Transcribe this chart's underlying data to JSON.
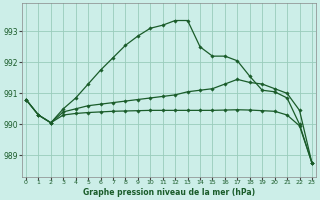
{
  "title": "Graphe pression niveau de la mer (hPa)",
  "background_color": "#cceee8",
  "grid_color": "#99ccbb",
  "line_color": "#1a5c2a",
  "x_ticks": [
    0,
    1,
    2,
    3,
    4,
    5,
    6,
    7,
    8,
    9,
    10,
    11,
    12,
    13,
    14,
    15,
    16,
    17,
    18,
    19,
    20,
    21,
    22,
    23
  ],
  "y_ticks": [
    989,
    990,
    991,
    992,
    993
  ],
  "ylim": [
    988.3,
    993.9
  ],
  "xlim": [
    -0.3,
    23.3
  ],
  "lines": [
    [
      990.8,
      990.3,
      990.05,
      990.5,
      990.85,
      991.3,
      991.75,
      992.15,
      992.55,
      992.85,
      993.1,
      993.2,
      993.35,
      993.35,
      992.5,
      992.2,
      992.2,
      992.05,
      991.55,
      991.1,
      991.05,
      990.85,
      990.0,
      988.75
    ],
    [
      990.8,
      990.3,
      990.05,
      990.4,
      990.5,
      990.6,
      990.65,
      990.7,
      990.75,
      990.8,
      990.85,
      990.9,
      990.95,
      991.05,
      991.1,
      991.15,
      991.3,
      991.45,
      991.35,
      991.3,
      991.15,
      991.0,
      990.45,
      988.75
    ],
    [
      990.8,
      990.3,
      990.05,
      990.3,
      990.35,
      990.38,
      990.4,
      990.42,
      990.43,
      990.44,
      990.45,
      990.45,
      990.45,
      990.45,
      990.45,
      990.45,
      990.46,
      990.47,
      990.46,
      990.44,
      990.42,
      990.3,
      989.95,
      988.75
    ]
  ]
}
